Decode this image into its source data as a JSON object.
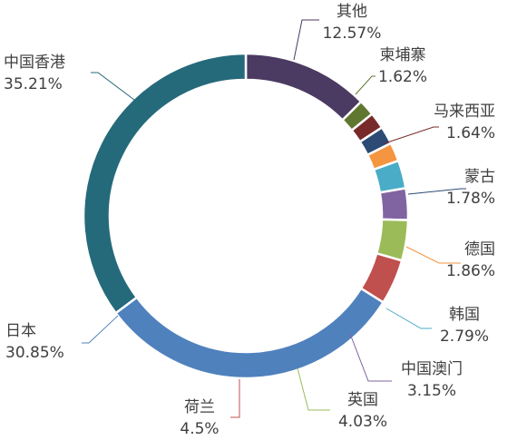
{
  "chart_data": {
    "type": "pie",
    "variant": "donut",
    "slices": [
      {
        "name": "其他",
        "value": 12.57,
        "label": "12.57%",
        "color": "#4B3A62"
      },
      {
        "name": "柬埔寨",
        "value": 1.62,
        "label": "1.62%",
        "color": "#5F772F"
      },
      {
        "name": "马来西亚",
        "value": 1.64,
        "label": "1.64%",
        "color": "#782A2A"
      },
      {
        "name": "蒙古",
        "value": 1.78,
        "label": "1.78%",
        "color": "#2C4A74"
      },
      {
        "name": "德国",
        "value": 1.86,
        "label": "1.86%",
        "color": "#F5953F"
      },
      {
        "name": "韩国",
        "value": 2.79,
        "label": "2.79%",
        "color": "#4AACC6"
      },
      {
        "name": "中国澳门",
        "value": 3.15,
        "label": "3.15%",
        "color": "#8064A2"
      },
      {
        "name": "英国",
        "value": 4.03,
        "label": "4.03%",
        "color": "#9BBB59"
      },
      {
        "name": "荷兰",
        "value": 4.5,
        "label": "4.5%",
        "color": "#C0504D"
      },
      {
        "name": "日本",
        "value": 30.85,
        "label": "30.85%",
        "color": "#4F81BD"
      },
      {
        "name": "中国香港",
        "value": 35.21,
        "label": "35.21%",
        "color": "#256A7A"
      }
    ]
  }
}
